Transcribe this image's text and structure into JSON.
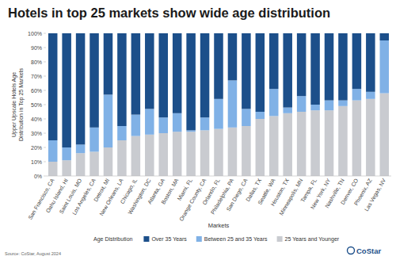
{
  "chart_data": {
    "type": "bar",
    "stacked": true,
    "title": "Hotels in top 25 markets show wide age distribution",
    "y_label": "Upper Upscale Hotels Age Distribution in Top 25 Markets",
    "x_label": "Markets",
    "legend_title": "Age Distribution",
    "source": "Source: CoStar, August 2024",
    "logo": "CoStar",
    "categories": [
      "San Francisco, CA",
      "Oahu Island, HI",
      "Saint Louis, MO",
      "Los Angeles, CA",
      "Detroit, MI",
      "New Orleans, LA",
      "Chicago, IL",
      "Washington, DC",
      "Atlanta, GA",
      "Boston, MA",
      "Miami, FL",
      "Orange County, CA",
      "Orlando, FL",
      "Philadelphia, PA",
      "San Diego, CA",
      "Dallas, TX",
      "Seattle, WA",
      "Houston, TX",
      "Minneapolis, MN",
      "Tampa, FL",
      "New York, NY",
      "Nashville, TN",
      "Denver, CO",
      "Phoenix, AZ",
      "Las Vegas, NV"
    ],
    "series": [
      {
        "name": "25 Years and Younger",
        "color": "#c9cbd0",
        "values": [
          10,
          11,
          16,
          17,
          20,
          25,
          28,
          29,
          30,
          31,
          31,
          32,
          33,
          34,
          35,
          40,
          42,
          44,
          45,
          46,
          46,
          49,
          53,
          54,
          58
        ]
      },
      {
        "name": "Between 25 and 35 Years",
        "color": "#80b1e6",
        "values": [
          15,
          9,
          6,
          17,
          37,
          10,
          15,
          18,
          11,
          13,
          1,
          9,
          21,
          33,
          12,
          5,
          19,
          4,
          11,
          4,
          7,
          4,
          8,
          5,
          37
        ]
      },
      {
        "name": "Over 35 Years",
        "color": "#1c4f8a",
        "values": [
          75,
          80,
          78,
          66,
          43,
          65,
          57,
          53,
          59,
          56,
          68,
          59,
          46,
          33,
          53,
          55,
          39,
          52,
          44,
          50,
          47,
          47,
          39,
          41,
          5
        ]
      }
    ],
    "ylim": [
      0,
      100
    ],
    "yticks": [
      {
        "value": 0,
        "label": "0%"
      },
      {
        "value": 10,
        "label": "10%"
      },
      {
        "value": 20,
        "label": "20%"
      },
      {
        "value": 30,
        "label": "30%"
      },
      {
        "value": 40,
        "label": "40%"
      },
      {
        "value": 50,
        "label": "50%"
      },
      {
        "value": 60,
        "label": "60%"
      },
      {
        "value": 70,
        "label": "70%"
      },
      {
        "value": 80,
        "label": "80%"
      },
      {
        "value": 90,
        "label": "90%"
      },
      {
        "value": 100,
        "label": "100%"
      }
    ],
    "grid": false,
    "legend": "bottom"
  }
}
